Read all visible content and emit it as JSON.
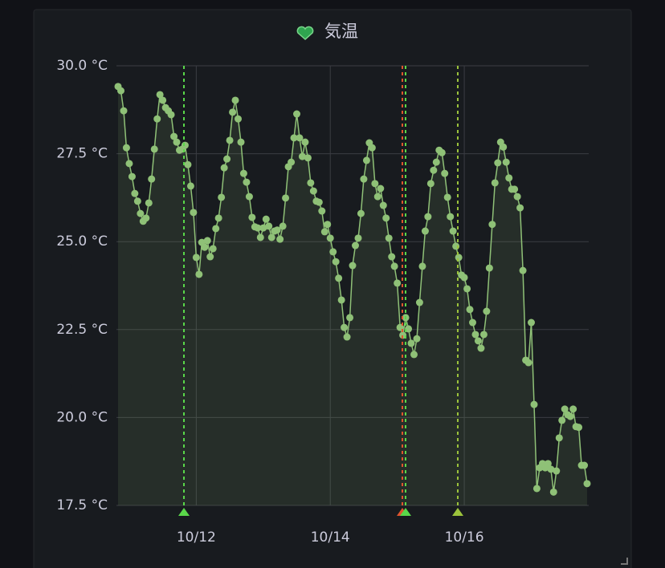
{
  "chart_data": {
    "type": "line",
    "title": "気温",
    "x": [
      10.833,
      10.875,
      10.917,
      10.958,
      11.0,
      11.042,
      11.083,
      11.125,
      11.167,
      11.208,
      11.25,
      11.292,
      11.333,
      11.375,
      11.417,
      11.458,
      11.5,
      11.542,
      11.583,
      11.625,
      11.667,
      11.708,
      11.75,
      11.792,
      11.833,
      11.875,
      11.917,
      11.958,
      12.0,
      12.042,
      12.083,
      12.125,
      12.167,
      12.208,
      12.25,
      12.292,
      12.333,
      12.375,
      12.417,
      12.458,
      12.5,
      12.542,
      12.583,
      12.625,
      12.667,
      12.708,
      12.75,
      12.792,
      12.833,
      12.875,
      12.917,
      12.958,
      13.0,
      13.042,
      13.083,
      13.125,
      13.167,
      13.208,
      13.25,
      13.292,
      13.333,
      13.375,
      13.417,
      13.458,
      13.5,
      13.542,
      13.583,
      13.625,
      13.667,
      13.708,
      13.75,
      13.792,
      13.833,
      13.875,
      13.917,
      13.958,
      14.0,
      14.042,
      14.083,
      14.125,
      14.167,
      14.208,
      14.25,
      14.292,
      14.333,
      14.375,
      14.417,
      14.458,
      14.5,
      14.542,
      14.583,
      14.625,
      14.667,
      14.708,
      14.75,
      14.792,
      14.833,
      14.875,
      14.917,
      14.958,
      15.0,
      15.042,
      15.083,
      15.125,
      15.167,
      15.208,
      15.25,
      15.292,
      15.333,
      15.375,
      15.417,
      15.458,
      15.5,
      15.542,
      15.583,
      15.625,
      15.667,
      15.708,
      15.75,
      15.792,
      15.833,
      15.875,
      15.917,
      15.958,
      16.0,
      16.042,
      16.083,
      16.125,
      16.167,
      16.208,
      16.25,
      16.292,
      16.333,
      16.375,
      16.417,
      16.458,
      16.5,
      16.542,
      16.583,
      16.625,
      16.667,
      16.708,
      16.75,
      16.792,
      16.833,
      16.875,
      16.917,
      16.958,
      17.0,
      17.042,
      17.083,
      17.125,
      17.167,
      17.208,
      17.25,
      17.292,
      17.333,
      17.375,
      17.417,
      17.458,
      17.5,
      17.542,
      17.583,
      17.625,
      17.667,
      17.708,
      17.75,
      17.792,
      17.833
    ],
    "values": [
      29.41,
      29.29,
      28.72,
      27.67,
      27.22,
      26.85,
      26.37,
      26.15,
      25.8,
      25.58,
      25.67,
      26.1,
      26.78,
      27.63,
      28.49,
      29.18,
      29.02,
      28.81,
      28.72,
      28.61,
      27.99,
      27.83,
      27.6,
      27.63,
      27.74,
      27.19,
      26.58,
      25.83,
      24.55,
      24.07,
      24.98,
      24.84,
      25.03,
      24.57,
      24.8,
      25.37,
      25.67,
      26.26,
      27.1,
      27.35,
      27.88,
      28.68,
      29.02,
      28.49,
      27.83,
      26.94,
      26.69,
      26.28,
      25.69,
      25.42,
      25.39,
      25.12,
      25.39,
      25.64,
      25.44,
      25.12,
      25.3,
      25.33,
      25.07,
      25.44,
      26.24,
      27.13,
      27.26,
      27.95,
      28.63,
      27.95,
      27.42,
      27.83,
      27.38,
      26.67,
      26.44,
      26.15,
      26.12,
      25.87,
      25.28,
      25.49,
      25.1,
      24.71,
      24.43,
      23.96,
      23.34,
      22.56,
      22.29,
      22.84,
      24.32,
      24.89,
      25.1,
      25.8,
      26.78,
      27.31,
      27.81,
      27.67,
      26.65,
      26.28,
      26.51,
      26.03,
      25.67,
      25.1,
      24.57,
      24.3,
      23.82,
      22.56,
      22.34,
      22.84,
      22.52,
      22.11,
      21.79,
      22.24,
      23.27,
      24.3,
      25.3,
      25.71,
      26.65,
      27.03,
      27.26,
      27.6,
      27.53,
      26.94,
      26.26,
      25.71,
      25.3,
      24.87,
      24.55,
      24.05,
      23.98,
      23.66,
      23.07,
      22.7,
      22.36,
      22.18,
      21.97,
      22.36,
      23.02,
      24.25,
      25.49,
      26.67,
      27.24,
      27.83,
      27.69,
      27.26,
      26.81,
      26.49,
      26.49,
      26.28,
      25.96,
      24.18,
      21.63,
      21.56,
      22.7,
      20.37,
      17.98,
      18.57,
      18.69,
      18.57,
      18.69,
      18.53,
      17.88,
      18.48,
      19.42,
      19.92,
      20.24,
      20.08,
      20.03,
      20.24,
      19.74,
      19.72,
      18.64,
      18.64,
      18.12
    ],
    "color": "#8fc177",
    "xlim": [
      10.809,
      17.857
    ],
    "xticks": [
      {
        "value": 12,
        "label": "10/12"
      },
      {
        "value": 14,
        "label": "10/14"
      },
      {
        "value": 16,
        "label": "10/16"
      }
    ],
    "ylim": [
      17.5,
      30
    ],
    "yticks": [
      {
        "value": 17.5,
        "label": "17.5 °C"
      },
      {
        "value": 20,
        "label": "20.0 °C"
      },
      {
        "value": 22.5,
        "label": "22.5 °C"
      },
      {
        "value": 25,
        "label": "25.0 °C"
      },
      {
        "value": 27.5,
        "label": "27.5 °C"
      },
      {
        "value": 30,
        "label": "30.0 °C"
      }
    ],
    "grid": true,
    "annotations": [
      {
        "x": 11.816,
        "color": "#5ad84a"
      },
      {
        "x": 15.076,
        "color": "#e0552e"
      },
      {
        "x": 15.124,
        "color": "#5ad84a"
      },
      {
        "x": 15.903,
        "color": "#9cc43c"
      }
    ]
  }
}
